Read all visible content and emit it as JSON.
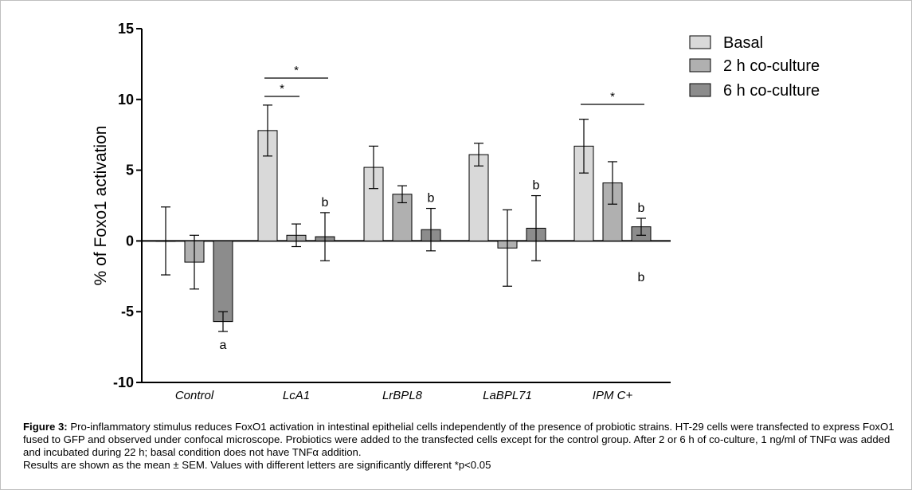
{
  "chart_data": {
    "type": "bar",
    "ylabel": "% of Foxo1 activation",
    "xlabel": "",
    "ylim": [
      -10,
      15
    ],
    "yticks": [
      15,
      10,
      5,
      0,
      -5,
      -10
    ],
    "grid": false,
    "legend_position": "top-right",
    "categories": [
      "Control",
      "LcA1",
      "LrBPL8",
      "LaBPL71",
      "IPM C+"
    ],
    "series": [
      {
        "name": "Basal",
        "color": "#d9d9d9",
        "values": [
          0.0,
          7.8,
          5.2,
          6.1,
          6.7
        ],
        "errors": [
          2.4,
          1.8,
          1.5,
          0.8,
          1.9
        ]
      },
      {
        "name": "2 h co-culture",
        "color": "#b0b0b0",
        "values": [
          -1.5,
          0.4,
          3.3,
          -0.5,
          4.1
        ],
        "errors": [
          1.9,
          0.8,
          0.6,
          2.7,
          1.5
        ]
      },
      {
        "name": "6 h co-culture",
        "color": "#8c8c8c",
        "values": [
          -5.7,
          0.3,
          0.8,
          0.9,
          1.0
        ],
        "errors": [
          0.7,
          1.7,
          1.5,
          2.3,
          0.6
        ]
      }
    ],
    "letter_annotations": [
      {
        "category": "Control",
        "series": "6 h co-culture",
        "text": "a",
        "position": "below"
      },
      {
        "category": "LcA1",
        "series": "6 h co-culture",
        "text": "b",
        "position": "above"
      },
      {
        "category": "LrBPL8",
        "series": "6 h co-culture",
        "text": "b",
        "position": "above"
      },
      {
        "category": "LaBPL71",
        "series": "6 h co-culture",
        "text": "b",
        "position": "above"
      },
      {
        "category": "IPM C+",
        "series": "6 h co-culture",
        "text": "b",
        "position": "above"
      },
      {
        "category": "IPM C+",
        "series": "6 h co-culture",
        "text": "b",
        "position": "below"
      }
    ],
    "significance_brackets": [
      {
        "category": "LcA1",
        "from": "Basal",
        "to": "2 h co-culture",
        "text": "*"
      },
      {
        "category": "LcA1",
        "from": "Basal",
        "to": "6 h co-culture",
        "text": "*"
      },
      {
        "category": "IPM C+",
        "from": "Basal",
        "to": "6 h co-culture",
        "text": "*"
      }
    ]
  },
  "caption": {
    "label": "Figure 3:",
    "text": " Pro-inflammatory stimulus reduces FoxO1 activation in intestinal epithelial cells independently of the presence of probiotic strains. HT-29 cells were transfected to express FoxO1 fused to GFP and observed under confocal microscope. Probiotics were added to the transfected cells except for the control group. After 2 or 6 h of co-culture, 1 ng/ml of TNFα was added and incubated during 22 h; basal condition does not have TNFα addition.",
    "note": "Results are shown as the mean ± SEM. Values with different letters are significantly different *p<0.05"
  }
}
